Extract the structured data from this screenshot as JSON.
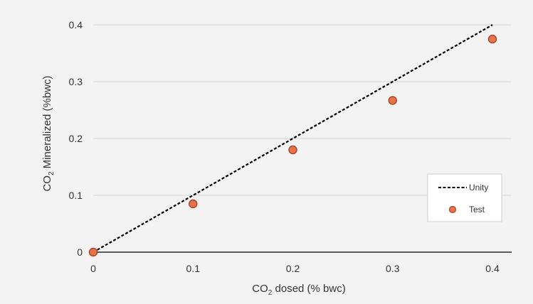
{
  "chart_data": {
    "type": "scatter",
    "xlabel": {
      "prefix": "CO",
      "sub": "2",
      "suffix": " dosed (% bwc)"
    },
    "ylabel": {
      "prefix": "CO",
      "sub": "2",
      "suffix": " Mineralized (%bwc)"
    },
    "xlim": [
      0,
      0.42
    ],
    "ylim": [
      0,
      0.4
    ],
    "x_ticks": [
      0,
      0.1,
      0.2,
      0.3,
      0.4
    ],
    "x_tick_labels": [
      "0",
      "0.1",
      "0.2",
      "0.3",
      "0.4"
    ],
    "y_ticks": [
      0,
      0.1,
      0.2,
      0.3,
      0.4
    ],
    "y_tick_labels": [
      "0",
      "0.1",
      "0.2",
      "0.3",
      "0.4"
    ],
    "grid": "horizontal",
    "legend_position": "bottom-right",
    "series": [
      {
        "name": "Unity",
        "kind": "line",
        "style": "dashed",
        "color": "#000000",
        "x": [
          0,
          0.4
        ],
        "y": [
          0,
          0.4
        ]
      },
      {
        "name": "Test",
        "kind": "scatter",
        "color": "#e8734a",
        "edge_color": "#a9442a",
        "x": [
          0,
          0.1,
          0.2,
          0.3,
          0.4
        ],
        "y": [
          0,
          0.085,
          0.18,
          0.267,
          0.375
        ]
      }
    ]
  }
}
